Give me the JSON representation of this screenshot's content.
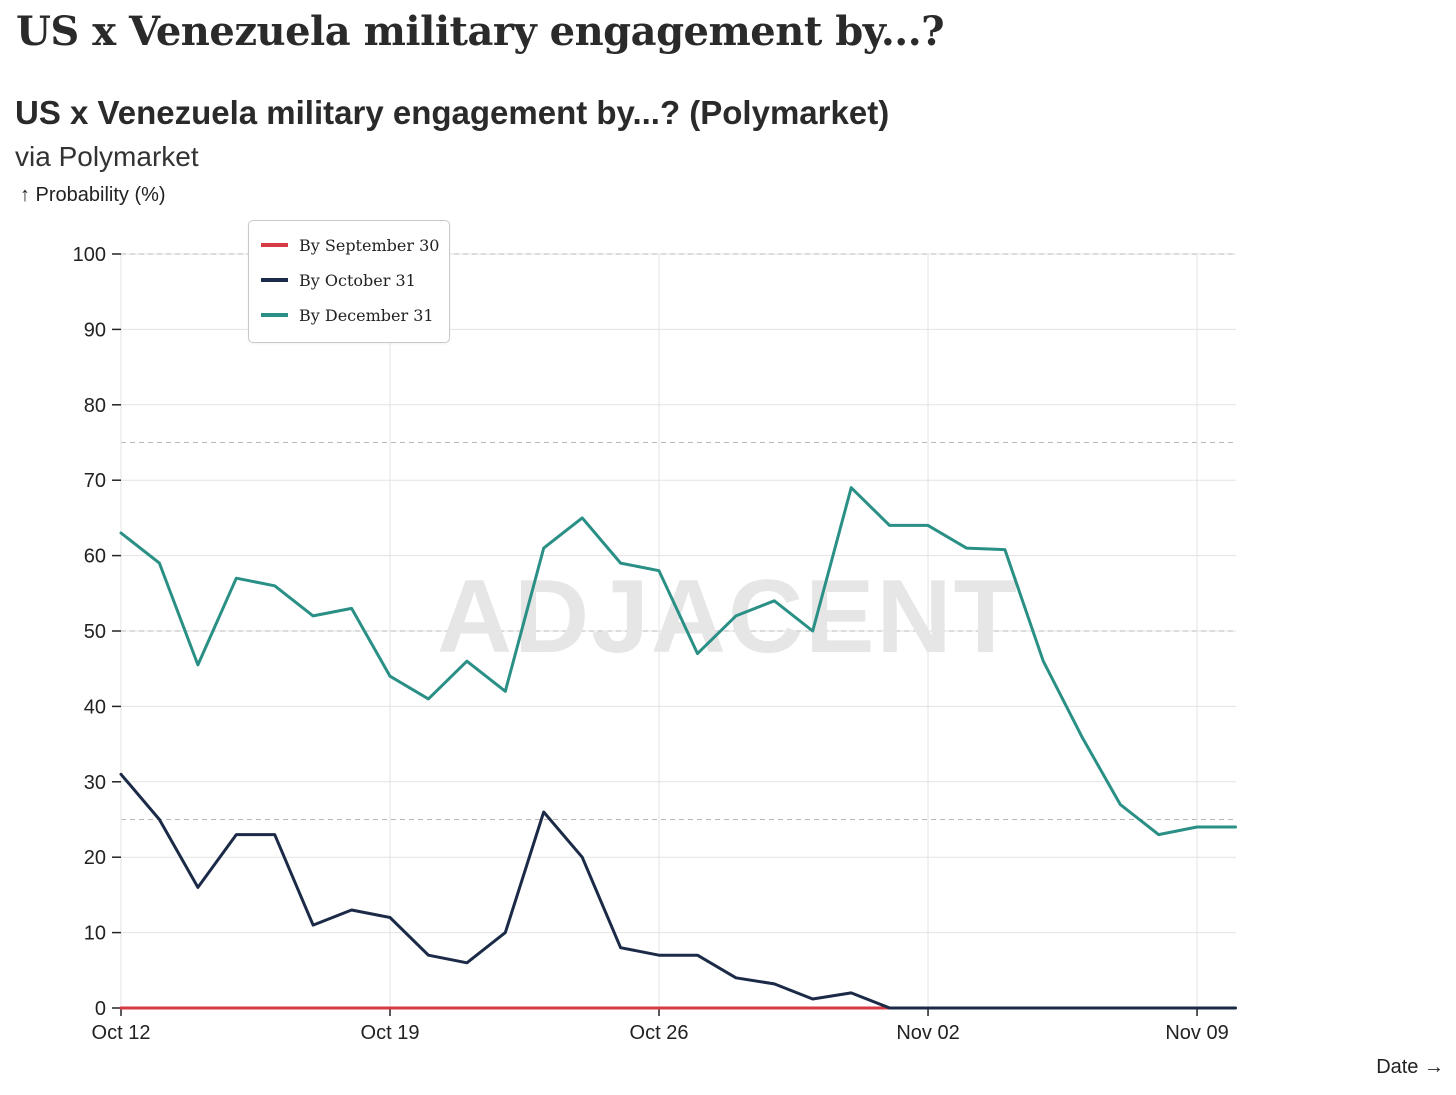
{
  "page": {
    "title": "US x Venezuela military engagement by...?"
  },
  "chart_data": {
    "type": "line",
    "title": "US x Venezuela military engagement by...? (Polymarket)",
    "subtitle": "via Polymarket",
    "ylabel": "↑ Probability (%)",
    "xlabel": "Date →",
    "ylim": [
      0,
      100
    ],
    "yticks": [
      0,
      10,
      20,
      30,
      40,
      50,
      60,
      70,
      80,
      90,
      100
    ],
    "reference_lines": [
      25,
      50,
      75,
      100
    ],
    "x_start": "Oct 12",
    "x_end_offset_days": 29,
    "xticks": [
      {
        "label": "Oct 12",
        "day": 0
      },
      {
        "label": "Oct 19",
        "day": 7
      },
      {
        "label": "Oct 26",
        "day": 14
      },
      {
        "label": "Nov 02",
        "day": 21
      },
      {
        "label": "Nov 09",
        "day": 28
      }
    ],
    "grid": true,
    "legend_position": "top-left",
    "watermark": "ADJACENT",
    "x": [
      0,
      1,
      2,
      3,
      4,
      5,
      6,
      7,
      8,
      9,
      10,
      11,
      12,
      13,
      14,
      15,
      16,
      17,
      18,
      19,
      20,
      21,
      22,
      23,
      24,
      25,
      26,
      27,
      28,
      29
    ],
    "series": [
      {
        "name": "By September 30",
        "color": "#d63a45",
        "values": [
          0,
          0,
          0,
          0,
          0,
          0,
          0,
          0,
          0,
          0,
          0,
          0,
          0,
          0,
          0,
          0,
          0,
          0,
          0,
          0,
          0,
          null,
          null,
          null,
          null,
          null,
          null,
          null,
          null,
          null
        ]
      },
      {
        "name": "By October 31",
        "color": "#1b2a47",
        "values": [
          31,
          25,
          16,
          23,
          23,
          11,
          13,
          12,
          7,
          6,
          10,
          26,
          20,
          8,
          7,
          7,
          4,
          3.2,
          1.2,
          2,
          0,
          0,
          0,
          0,
          0,
          0,
          0,
          0,
          0,
          0
        ]
      },
      {
        "name": "By December 31",
        "color": "#2a9086",
        "values": [
          63,
          59,
          45.5,
          57,
          56,
          52,
          53,
          44,
          41,
          46,
          42,
          61,
          65,
          59,
          58,
          47,
          52,
          54,
          50,
          69,
          64,
          64,
          61,
          60.8,
          46,
          36,
          27,
          23,
          24,
          24
        ]
      }
    ]
  }
}
